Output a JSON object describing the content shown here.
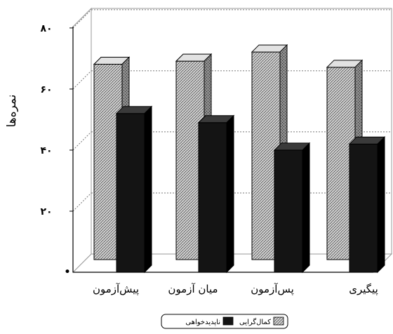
{
  "chart_data": {
    "type": "bar",
    "title": "",
    "xlabel": "",
    "ylabel": "نمره‌ها",
    "ylim": [
      0,
      80
    ],
    "yticks": [
      {
        "value": 20,
        "label": "۲۰"
      },
      {
        "value": 40,
        "label": "۴۰"
      },
      {
        "value": 60,
        "label": "۶۰"
      },
      {
        "value": 80,
        "label": "۸۰"
      }
    ],
    "categories": [
      "پیش‌آزمون",
      "میان آزمون",
      "پس‌آزمون",
      "پیگیری"
    ],
    "series": [
      {
        "name": "کمال‌گرایی",
        "values": [
          64,
          65,
          68,
          63
        ]
      },
      {
        "name": "ناپدیدخواهی",
        "values": [
          52,
          49,
          40,
          42
        ]
      }
    ],
    "grid": true,
    "legend_position": "bottom-center",
    "style": "3d-clustered",
    "colors": {
      "series_1": "#b8b8b8",
      "series_2": "#111111",
      "axis": "#000000",
      "grid": "#777777"
    }
  }
}
